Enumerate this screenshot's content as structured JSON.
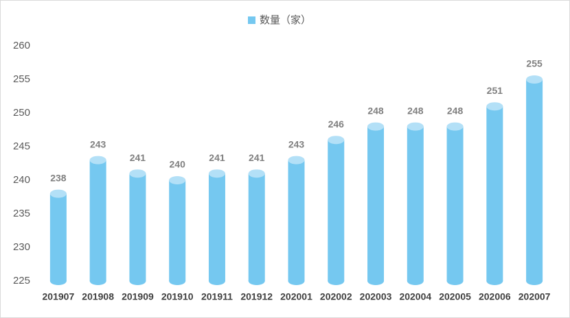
{
  "chart_data": {
    "type": "bar",
    "categories": [
      "201907",
      "201908",
      "201909",
      "201910",
      "201911",
      "201912",
      "202001",
      "202002",
      "202003",
      "202004",
      "202005",
      "202006",
      "202007"
    ],
    "series": [
      {
        "name": "数量（家）",
        "color": "#75c8f0",
        "values": [
          238,
          243,
          241,
          240,
          241,
          241,
          243,
          246,
          248,
          248,
          248,
          251,
          255
        ]
      }
    ],
    "ylim": [
      225,
      260
    ],
    "yticks": [
      225,
      230,
      235,
      240,
      245,
      250,
      255,
      260
    ],
    "grid": false,
    "legend": "top"
  }
}
